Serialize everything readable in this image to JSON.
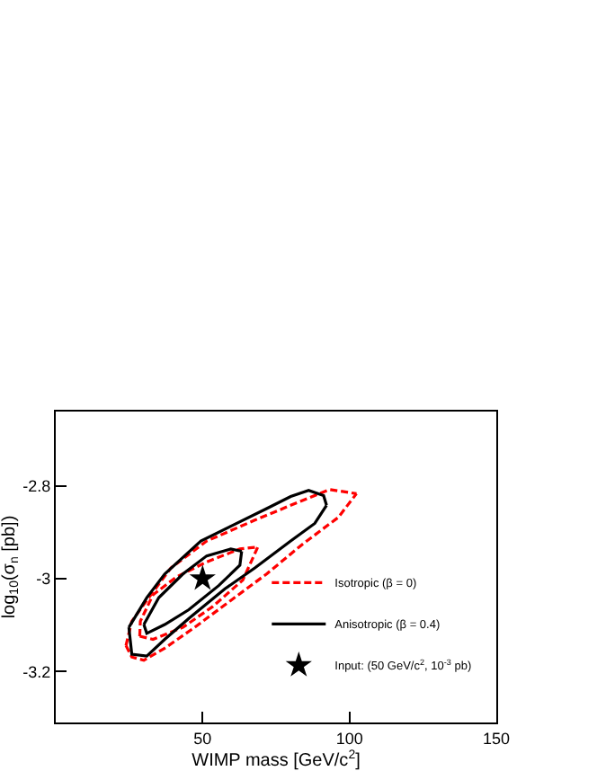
{
  "chart_data": {
    "type": "line",
    "xlabel": "WIMP mass [GeV/c$^{2}$]",
    "ylabel": "log$_{10}$(σ$_{n}$ [pb])",
    "xlim": [
      0,
      150
    ],
    "xticks": [
      50,
      100,
      150
    ],
    "ylim": [
      -3.31,
      -2.64
    ],
    "yticks": [
      -2.8,
      -3,
      -3.2
    ],
    "grid": false,
    "legend": "bottom right",
    "series": [
      {
        "name": "Isotropic (β = 0)",
        "color": "#ff0000",
        "line_style": "dashed",
        "marker": "none",
        "x": [
          23.9,
          25.9,
          31,
          39.2,
          51.4,
          67.8,
          80,
          93.3,
          102.4
        ],
        "values": [
          -3.144,
          -3.092,
          -3.047,
          -2.977,
          -2.919,
          -2.874,
          -2.842,
          -2.808,
          -2.817
        ]
      },
      {
        "color": "#ff0000",
        "line_style": "dashed",
        "marker": "none",
        "x": [
          23.9,
          25.9,
          30,
          37.1,
          47.3,
          59.6,
          71.8,
          84,
          96.2,
          102.4
        ],
        "values": [
          -3.144,
          -3.169,
          -3.176,
          -3.15,
          -3.105,
          -3.047,
          -2.99,
          -2.926,
          -2.868,
          -2.817
        ]
      },
      {
        "color": "#ff0000",
        "line_style": "dashed",
        "marker": "none",
        "x": [
          28.6,
          28.8,
          33.1,
          41.2,
          51.4,
          62.7,
          68.8
        ],
        "values": [
          -3.124,
          -3.092,
          -3.035,
          -2.996,
          -2.964,
          -2.936,
          -2.932
        ]
      },
      {
        "color": "#ff0000",
        "line_style": "dashed",
        "marker": "none",
        "x": [
          28.6,
          33.1,
          43.3,
          53.5,
          63.7,
          68.8
        ],
        "values": [
          -3.124,
          -3.131,
          -3.105,
          -3.06,
          -3.003,
          -2.932
        ]
      },
      {
        "name": "Anisotropic (β = 0.4)",
        "color": "#000000",
        "line_style": "solid",
        "marker": "none",
        "x": [
          24.9,
          31,
          37.1,
          49.4,
          59.6,
          71.8,
          80,
          86.1,
          91.2,
          92.2
        ],
        "values": [
          -3.105,
          -3.041,
          -2.99,
          -2.919,
          -2.887,
          -2.849,
          -2.823,
          -2.81,
          -2.821,
          -2.842
        ]
      },
      {
        "color": "#000000",
        "line_style": "solid",
        "marker": "none",
        "x": [
          24.9,
          25.9,
          31,
          37.1,
          45.3,
          57.6,
          67.8,
          80,
          88.2,
          92.2
        ],
        "values": [
          -3.105,
          -3.163,
          -3.167,
          -3.131,
          -3.086,
          -3.022,
          -2.977,
          -2.919,
          -2.881,
          -2.842
        ]
      },
      {
        "color": "#000000",
        "line_style": "solid",
        "marker": "none",
        "x": [
          30,
          35.1,
          43.3,
          51.4,
          59.6,
          63.3
        ],
        "values": [
          -3.099,
          -3.041,
          -2.99,
          -2.951,
          -2.936,
          -2.941
        ]
      },
      {
        "color": "#000000",
        "line_style": "solid",
        "marker": "none",
        "x": [
          30,
          31,
          37.1,
          45.3,
          55.5,
          62.7,
          63.3
        ],
        "values": [
          -3.099,
          -3.118,
          -3.099,
          -3.067,
          -3.015,
          -2.971,
          -2.941
        ]
      },
      {
        "name": "Input: (50 GeV/c$^{2}$, 10$^{-3}$ pb)",
        "type": "scatter",
        "color": "#000000",
        "marker": "star",
        "x": [
          50
        ],
        "values": [
          -3
        ]
      }
    ]
  }
}
